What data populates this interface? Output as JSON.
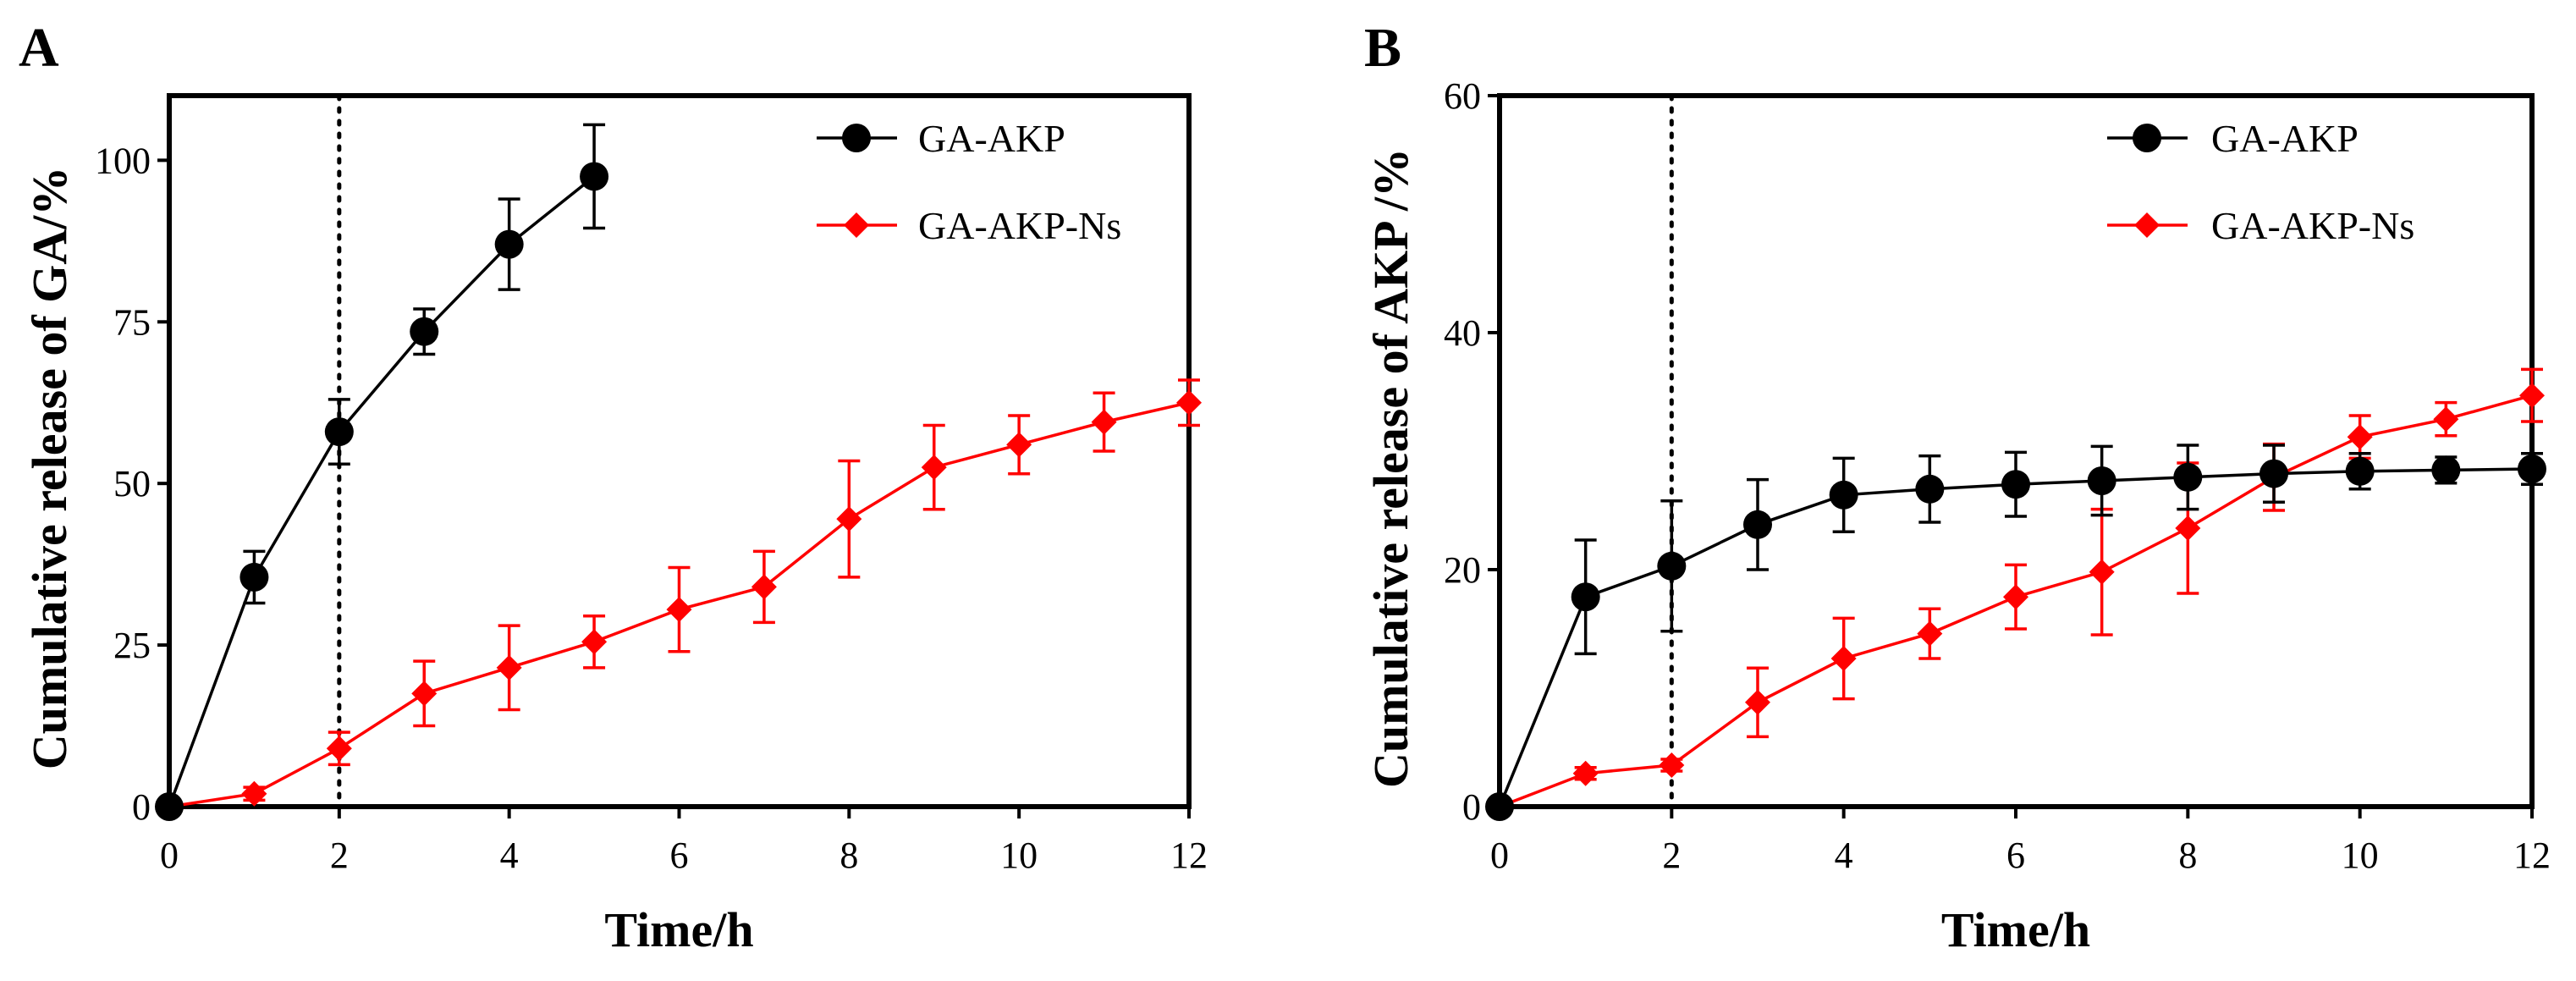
{
  "chart_data": [
    {
      "type": "line",
      "panel_label": "A",
      "xlabel": "Time/h",
      "ylabel": "Cumulative release of GA/%",
      "xlim": [
        0,
        12
      ],
      "ylim": [
        0,
        110
      ],
      "xticks": [
        "0",
        "2",
        "4",
        "6",
        "8",
        "10",
        "12"
      ],
      "yticks": [
        "0",
        "25",
        "50",
        "75",
        "100"
      ],
      "xtick_values": [
        0,
        2,
        4,
        6,
        8,
        10,
        12
      ],
      "ytick_values": [
        0,
        25,
        50,
        75,
        100
      ],
      "vline_x": 2,
      "legend_position": "top-right",
      "series": [
        {
          "name": "GA-AKP",
          "color": "#000000",
          "marker": "circle",
          "x": [
            0,
            1,
            2,
            3,
            4,
            5
          ],
          "values": [
            0,
            35.5,
            58,
            73.5,
            87,
            97.5
          ],
          "errors": [
            0,
            4,
            5,
            3.5,
            7,
            8
          ]
        },
        {
          "name": "GA-AKP-Ns",
          "color": "#ff0000",
          "marker": "diamond",
          "x": [
            0,
            1,
            2,
            3,
            4,
            5,
            6,
            7,
            8,
            9,
            10,
            11,
            12
          ],
          "values": [
            0,
            2,
            9,
            17.5,
            21.5,
            25.5,
            30.5,
            34,
            44.5,
            52.5,
            56,
            59.5,
            62.5
          ],
          "errors": [
            0,
            1,
            2.5,
            5,
            6.5,
            4,
            6.5,
            5.5,
            9,
            6.5,
            4.5,
            4.5,
            3.5
          ]
        }
      ]
    },
    {
      "type": "line",
      "panel_label": "B",
      "xlabel": "Time/h",
      "ylabel": "Cumulative release of AKP /%",
      "xlim": [
        0,
        12
      ],
      "ylim": [
        0,
        60
      ],
      "xticks": [
        "0",
        "2",
        "4",
        "6",
        "8",
        "10",
        "12"
      ],
      "yticks": [
        "0",
        "20",
        "40",
        "60"
      ],
      "xtick_values": [
        0,
        2,
        4,
        6,
        8,
        10,
        12
      ],
      "ytick_values": [
        0,
        20,
        40,
        60
      ],
      "vline_x": 2,
      "legend_position": "top-right",
      "series": [
        {
          "name": "GA-AKP",
          "color": "#000000",
          "marker": "circle",
          "x": [
            0,
            1,
            2,
            3,
            4,
            5,
            6,
            7,
            8,
            9,
            10,
            11,
            12
          ],
          "values": [
            0,
            17.7,
            20.3,
            23.8,
            26.3,
            26.8,
            27.2,
            27.5,
            27.8,
            28.1,
            28.3,
            28.4,
            28.5
          ],
          "errors": [
            0,
            4.8,
            5.5,
            3.8,
            3.1,
            2.8,
            2.7,
            2.9,
            2.7,
            2.4,
            1.5,
            1.1,
            1.3
          ]
        },
        {
          "name": "GA-AKP-Ns",
          "color": "#ff0000",
          "marker": "diamond",
          "x": [
            0,
            1,
            2,
            3,
            4,
            5,
            6,
            7,
            8,
            9,
            10,
            11,
            12
          ],
          "values": [
            0,
            2.8,
            3.5,
            8.8,
            12.5,
            14.6,
            17.7,
            19.8,
            23.5,
            27.8,
            31.2,
            32.7,
            34.7
          ],
          "errors": [
            0,
            0.5,
            0.5,
            2.9,
            3.4,
            2.1,
            2.7,
            5.3,
            5.5,
            2.8,
            1.8,
            1.4,
            2.2
          ]
        }
      ]
    }
  ]
}
